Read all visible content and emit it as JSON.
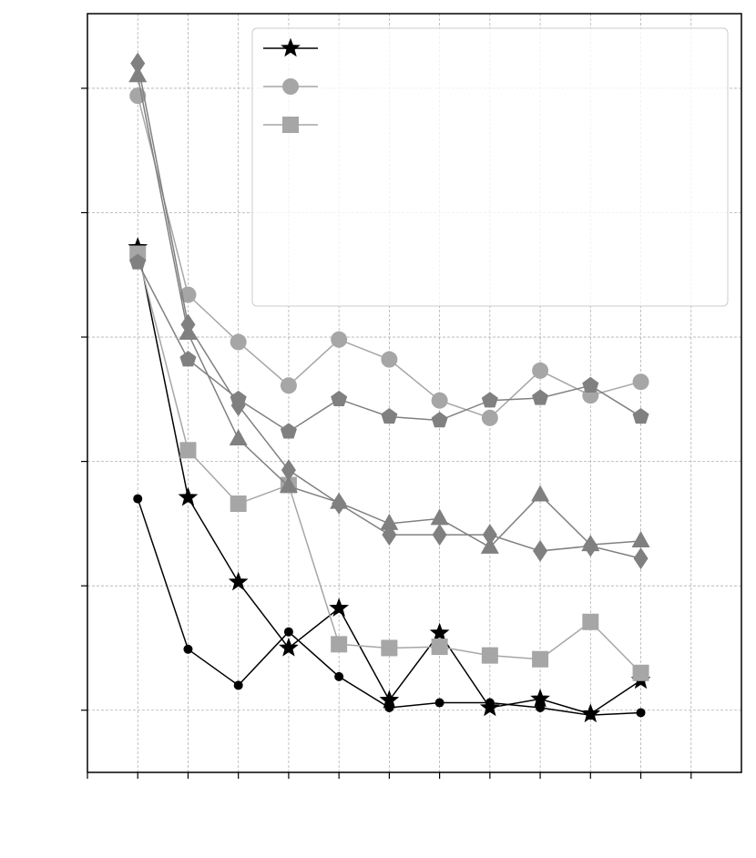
{
  "chart_data": {
    "type": "line",
    "title": "",
    "xlabel": "",
    "ylabel": "",
    "xlim": [
      0.5,
      7.0
    ],
    "ylim": [
      0.0,
      6.1
    ],
    "grid": true,
    "legend_position": "top-right",
    "x": [
      1.0,
      1.5,
      2.0,
      2.5,
      3.0,
      3.5,
      4.0,
      4.5,
      5.0,
      5.5,
      6.0
    ],
    "series": [
      {
        "marker": "star",
        "color": "#000000",
        "values": [
          4.22,
          2.21,
          1.53,
          1.0,
          1.32,
          0.58,
          1.12,
          0.52,
          0.59,
          0.47,
          0.74
        ]
      },
      {
        "marker": "circle",
        "color": "#a6a6a6",
        "values": [
          5.44,
          3.84,
          3.46,
          3.11,
          3.48,
          3.32,
          2.99,
          2.85,
          3.23,
          3.03,
          3.14
        ]
      },
      {
        "marker": "square",
        "color": "#a6a6a6",
        "values": [
          4.17,
          2.59,
          2.16,
          2.31,
          1.03,
          1.0,
          1.01,
          0.94,
          0.91,
          1.21,
          0.8
        ]
      },
      {
        "marker": "pentagon",
        "color": "#808080",
        "values": [
          4.1,
          3.32,
          3.0,
          2.74,
          3.0,
          2.86,
          2.83,
          2.99,
          3.01,
          3.11,
          2.86
        ]
      },
      {
        "marker": "triangle",
        "color": "#808080",
        "values": [
          5.6,
          3.53,
          2.68,
          2.3,
          2.17,
          2.0,
          2.04,
          1.81,
          2.23,
          1.83,
          1.86
        ]
      },
      {
        "marker": "diamond",
        "color": "#808080",
        "values": [
          5.7,
          3.6,
          2.95,
          2.43,
          2.16,
          1.91,
          1.91,
          1.91,
          1.78,
          1.82,
          1.72
        ]
      },
      {
        "marker": "dot",
        "color": "#000000",
        "values": [
          2.2,
          0.99,
          0.7,
          1.13,
          0.77,
          0.52,
          0.56,
          0.56,
          0.52,
          0.46,
          0.48
        ]
      }
    ]
  }
}
